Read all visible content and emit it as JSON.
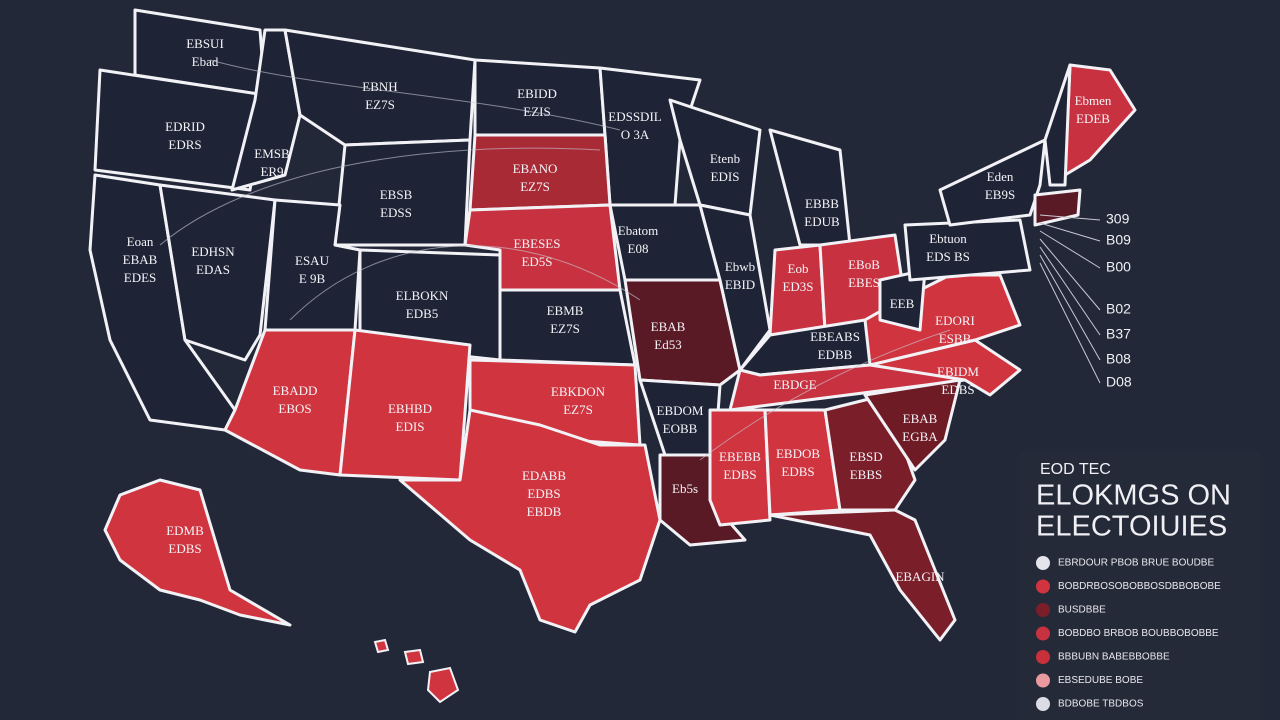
{
  "states": [
    {
      "lines": [
        "EBSUI",
        "Ebad"
      ],
      "color": "#1e2436"
    },
    {
      "lines": [
        "EDRID",
        "EDRS"
      ],
      "color": "#1e2436"
    },
    {
      "lines": [
        "EMSB",
        "ER9"
      ],
      "color": "#1e2436"
    },
    {
      "lines": [
        "EBNH",
        "EZ7S"
      ],
      "color": "#1e2436"
    },
    {
      "lines": [
        "EBIDD",
        "EZIS"
      ],
      "color": "#1e2436"
    },
    {
      "lines": [
        "EDSSDIL",
        "O 3A"
      ],
      "color": "#1e2436"
    },
    {
      "lines": [
        "EBANO",
        "EZ7S"
      ],
      "color": "#a82a35"
    },
    {
      "lines": [
        "EBSB",
        "EDSS"
      ],
      "color": "#1e2436"
    },
    {
      "lines": [
        "EBESES",
        "ED5S"
      ],
      "color": "#c83240"
    },
    {
      "lines": [
        "Eoan",
        "EBAB",
        "EDES"
      ],
      "color": "#1e2436"
    },
    {
      "lines": [
        "EDHSN",
        "EDAS"
      ],
      "color": "#1e2436"
    },
    {
      "lines": [
        "ESAU",
        "E 9B"
      ],
      "color": "#1e2436"
    },
    {
      "lines": [
        "ELBOKN",
        "EDB5"
      ],
      "color": "#1e2436"
    },
    {
      "lines": [
        "EBMB",
        "EZ7S"
      ],
      "color": "#1e2436"
    },
    {
      "lines": [
        "EBADD",
        "EBOS"
      ],
      "color": "#d0343f"
    },
    {
      "lines": [
        "EBHBD",
        "EDIS"
      ],
      "color": "#d0343f"
    },
    {
      "lines": [
        "EBKDON",
        "EZ7S"
      ],
      "color": "#d0343f"
    },
    {
      "lines": [
        "EDABB",
        "EDBS",
        "EBDB"
      ],
      "color": "#d0343f"
    },
    {
      "lines": [
        "Ebatom",
        "E08"
      ],
      "color": "#1e2436"
    },
    {
      "lines": [
        "EBAB",
        "Ed53"
      ],
      "color": "#5a1a25"
    },
    {
      "lines": [
        "EBDOM",
        "EOBB"
      ],
      "color": "#1e2436"
    },
    {
      "lines": [
        "Eb5s"
      ],
      "color": "#5a1a25"
    },
    {
      "lines": [
        "Etenb",
        "EDIS"
      ],
      "color": "#1e2436"
    },
    {
      "lines": [
        "Ebwb",
        "EBID"
      ],
      "color": "#1e2436"
    },
    {
      "lines": [
        "EBBB",
        "EDUB"
      ],
      "color": "#1e2436"
    },
    {
      "lines": [
        "Eob",
        "ED3S"
      ],
      "color": "#c83240"
    },
    {
      "lines": [
        "EBoB",
        "EBES"
      ],
      "color": "#c83240"
    },
    {
      "lines": [
        "EBEABS",
        "EDBB"
      ],
      "color": "#1e2436"
    },
    {
      "lines": [
        "EBDGE"
      ],
      "color": "#c83240"
    },
    {
      "lines": [
        "EBEBB",
        "EDBS"
      ],
      "color": "#d0343f"
    },
    {
      "lines": [
        "EBDOB",
        "EDBS"
      ],
      "color": "#d0343f"
    },
    {
      "lines": [
        "EBSD",
        "EBBS"
      ],
      "color": "#7a1e2a"
    },
    {
      "lines": [
        "EBAB",
        "EGBA"
      ],
      "color": "#6e1b26"
    },
    {
      "lines": [
        "EBAGIN"
      ],
      "color": "#7a1e2a"
    },
    {
      "lines": [
        "EBIDM",
        "EDBS"
      ],
      "color": "#d0343f"
    },
    {
      "lines": [
        "EDORI",
        "ESBB"
      ],
      "color": "#d0343f"
    },
    {
      "lines": [
        "EEB"
      ],
      "color": "#1e2436"
    },
    {
      "lines": [
        "Ebtuon",
        "EDS BS"
      ],
      "color": "#1e2436"
    },
    {
      "lines": [
        "Eden",
        "EB9S"
      ],
      "color": "#1e2436"
    },
    {
      "lines": [
        "Ebmen",
        "EDEB"
      ],
      "color": "#c83240"
    },
    {
      "lines": [
        "EDMB",
        "EDBS"
      ],
      "color": "#d0343f"
    }
  ],
  "side_labels": [
    "309",
    "B09",
    "B00",
    "B02",
    "B37",
    "B08",
    "D08"
  ],
  "legend": {
    "title": "EOD TEC",
    "heading": [
      "ELOKMGS ON",
      "ELECTOIUIES"
    ],
    "items": [
      {
        "label": "EBRDOUR PBOB BRUE BOUDBE",
        "color": "#e4e4ec"
      },
      {
        "label": "BOBDRBOSOBOBBOSDBBOBOBE",
        "color": "#d0343f"
      },
      {
        "label": "BUSDBBE",
        "color": "#7a1e2a"
      },
      {
        "label": "BOBDBO BRBOB BOUBBOBOBBE",
        "color": "#c83240"
      },
      {
        "label": "BBBUBN BABEBBOBBE",
        "color": "#c8303c"
      },
      {
        "label": "EBSEDUBE BOBE",
        "color": "#e89aa0"
      },
      {
        "label": "BDBOBE TBDBOS",
        "color": "#dcdce4"
      }
    ]
  }
}
